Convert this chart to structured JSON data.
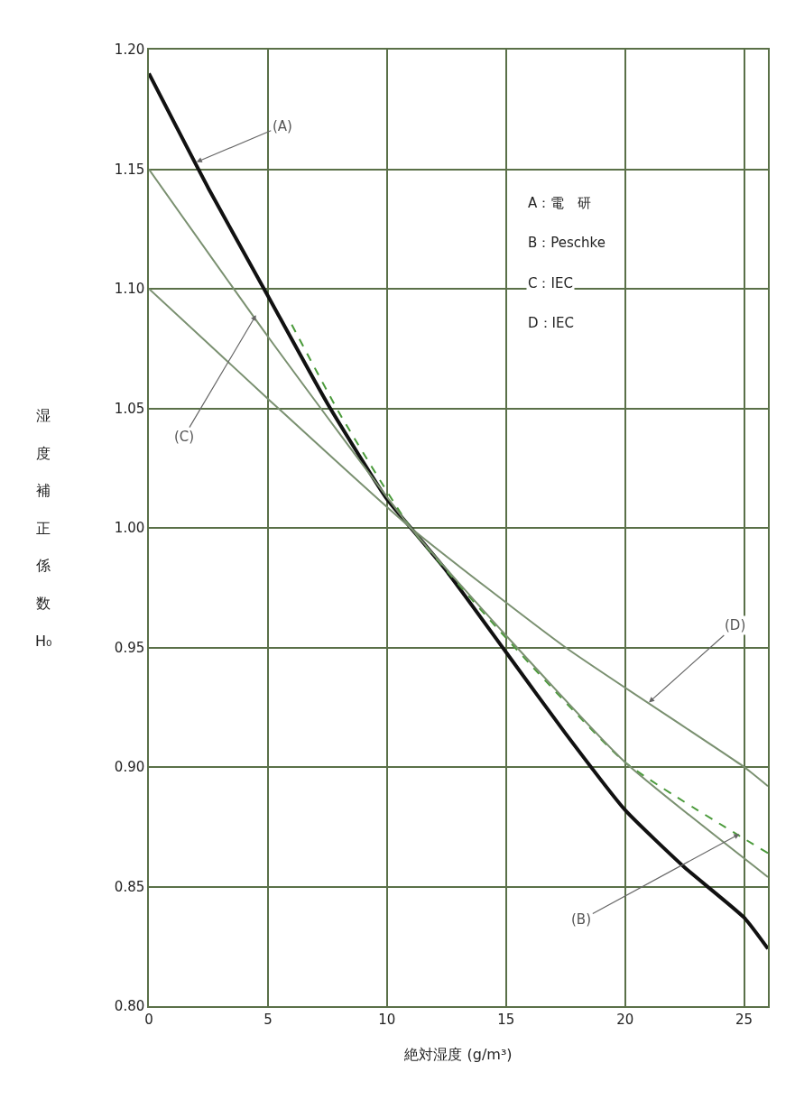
{
  "chart_data": {
    "type": "line",
    "xlabel": "絶対湿度 (g/m³)",
    "ylabel": "湿度補正係数H₀",
    "xlim": [
      0,
      26
    ],
    "xticks": [
      0,
      5,
      10,
      15,
      20,
      25
    ],
    "ylim": [
      0.8,
      1.2
    ],
    "yticks": [
      {
        "value": 0.8,
        "label": "0.80"
      },
      0.85,
      {
        "value": 0.9,
        "label": "0.90"
      },
      0.95,
      {
        "value": 1.0,
        "label": "1.00"
      },
      1.05,
      {
        "value": 1.1,
        "label": "1.10"
      },
      1.15,
      {
        "value": 1.2,
        "label": "1.20"
      }
    ],
    "grid": true,
    "marker": "none",
    "series": [
      {
        "color": "#111111",
        "line_style": "solid",
        "x": [
          0,
          2.5,
          5,
          7.5,
          10,
          11,
          12.5,
          15,
          17.5,
          20,
          22.5,
          25,
          26
        ],
        "values": [
          1.19,
          1.142,
          1.097,
          1.052,
          1.012,
          1.0,
          0.982,
          0.948,
          0.914,
          0.882,
          0.858,
          0.837,
          0.824
        ]
      },
      {
        "color": "#4a9a3a",
        "line_style": "dashed",
        "x": [
          6,
          8,
          11,
          15,
          20,
          26
        ],
        "values": [
          1.085,
          1.048,
          1.0,
          0.954,
          0.902,
          0.864
        ]
      },
      {
        "color": "#7a9070",
        "line_style": "solid",
        "x": [
          0,
          5,
          11,
          15,
          20,
          26
        ],
        "values": [
          1.15,
          1.08,
          1.0,
          0.955,
          0.902,
          0.854
        ]
      },
      {
        "color": "#7a9070",
        "line_style": "solid",
        "x": [
          0,
          5,
          11,
          17.5,
          25,
          26
        ],
        "values": [
          1.1,
          1.054,
          1.0,
          0.95,
          0.9,
          0.892
        ]
      }
    ],
    "annotations": [
      {
        "text": "(A)",
        "x": 2,
        "y": 1.153
      },
      {
        "text": "(B)",
        "x": 24.8,
        "y": 0.872
      },
      {
        "text": "(C)",
        "x": 4.5,
        "y": 1.089
      },
      {
        "text": "(D)",
        "x": 21,
        "y": 0.927
      },
      "A：電　研",
      "B：Peschke",
      "C：IEC",
      "D：IEC"
    ]
  }
}
